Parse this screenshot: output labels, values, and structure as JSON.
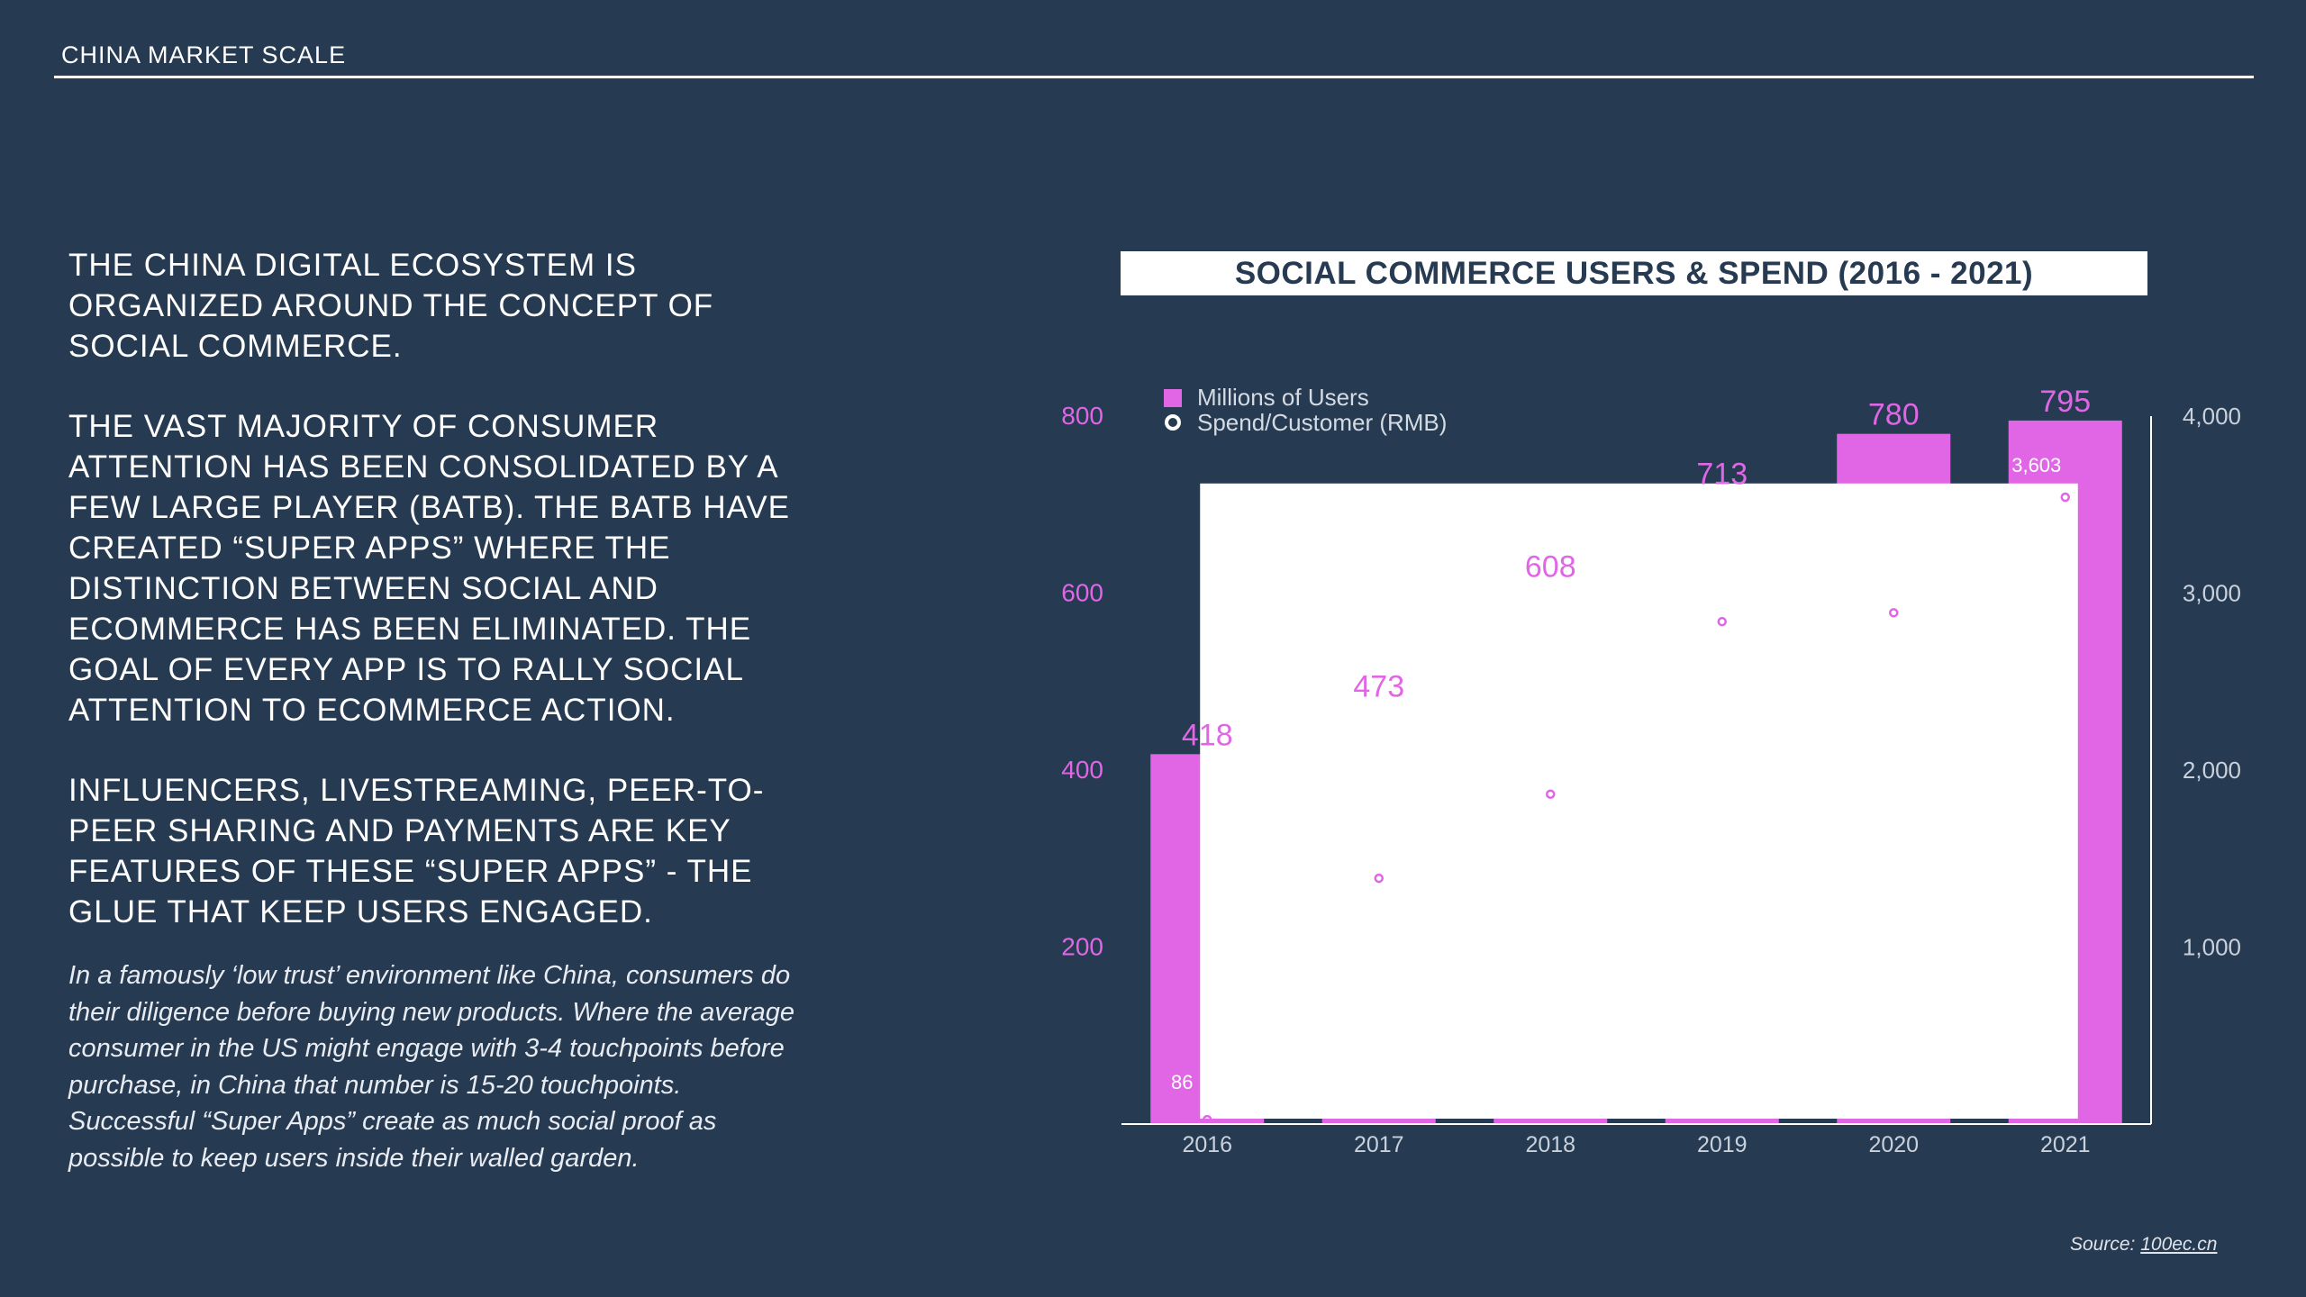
{
  "header": {
    "title": "CHINA MARKET SCALE"
  },
  "left": {
    "paragraphs": [
      "THE CHINA DIGITAL ECOSYSTEM IS ORGANIZED AROUND THE CONCEPT OF SOCIAL COMMERCE.",
      "THE VAST MAJORITY OF CONSUMER ATTENTION HAS BEEN CONSOLIDATED BY A FEW LARGE PLAYER (BATB). THE BATB HAVE CREATED  “SUPER APPS” WHERE THE DISTINCTION BETWEEN SOCIAL AND ECOMMERCE HAS BEEN ELIMINATED. THE GOAL OF EVERY APP IS TO RALLY SOCIAL ATTENTION TO ECOMMERCE ACTION.",
      "INFLUENCERS, LIVESTREAMING, PEER-TO-PEER SHARING AND PAYMENTS ARE KEY FEATURES OF THESE “SUPER APPS” - THE GLUE THAT KEEP USERS ENGAGED."
    ],
    "italic": "In a famously ‘low trust’ environment like China, consumers do their diligence before buying new products. Where the average consumer in the US might engage with 3-4 touchpoints before purchase, in China that number is 15-20 touchpoints. Successful “Super Apps” create as much social proof as possible to keep users inside their walled garden."
  },
  "chart_data": {
    "type": "bar",
    "title": "SOCIAL COMMERCE USERS & SPEND (2016 - 2021)",
    "categories": [
      "2016",
      "2017",
      "2018",
      "2019",
      "2020",
      "2021"
    ],
    "series": [
      {
        "name": "Millions of Users",
        "type": "bar",
        "axis": "left",
        "color": "#e066e6",
        "values": [
          418,
          473,
          608,
          713,
          780,
          795
        ],
        "labels": [
          "418",
          "473",
          "608",
          "713",
          "780",
          "795"
        ]
      },
      {
        "name": "Spend/Customer (RMB)",
        "type": "line",
        "axis": "right",
        "color": "#ffffff",
        "values": [
          86,
          1450,
          1925,
          2900,
          2950,
          3603
        ],
        "labels": [
          "86",
          "",
          "",
          "",
          "",
          "3,603"
        ]
      }
    ],
    "left_axis": {
      "ylim": [
        0,
        800
      ],
      "ticks": [
        "200",
        "400",
        "600",
        "800"
      ],
      "tick_values": [
        200,
        400,
        600,
        800
      ]
    },
    "right_axis": {
      "ylim": [
        0,
        4000
      ],
      "ticks": [
        "1,000",
        "2,000",
        "3,000",
        "4,000"
      ],
      "tick_values": [
        1000,
        2000,
        3000,
        4000
      ]
    },
    "legend_position": "top-left",
    "colors": {
      "bar": "#e066e6",
      "axis_left": "#e066e6",
      "axis_right": "#c9d1dc",
      "background": "#263a52"
    }
  },
  "source": {
    "prefix": "Source: ",
    "link": "100ec.cn"
  }
}
